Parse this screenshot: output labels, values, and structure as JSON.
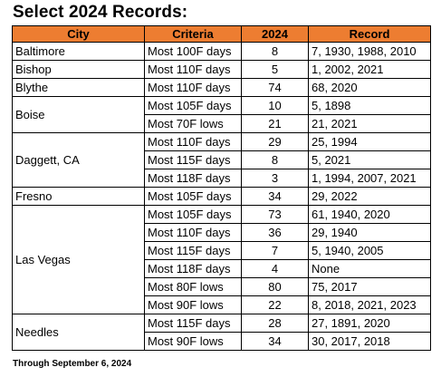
{
  "title": "Select 2024 Records:",
  "columns": [
    "City",
    "Criteria",
    "2024",
    "Record"
  ],
  "groups": [
    {
      "city": "Baltimore",
      "rows": [
        {
          "criteria": "Most 100F days",
          "y2024": "8",
          "record": "7, 1930, 1988, 2010"
        }
      ]
    },
    {
      "city": "Bishop",
      "rows": [
        {
          "criteria": "Most 110F days",
          "y2024": "5",
          "record": "1, 2002, 2021"
        }
      ]
    },
    {
      "city": "Blythe",
      "rows": [
        {
          "criteria": "Most 110F days",
          "y2024": "74",
          "record": "68, 2020"
        }
      ]
    },
    {
      "city": "Boise",
      "rows": [
        {
          "criteria": "Most 105F days",
          "y2024": "10",
          "record": "5, 1898"
        },
        {
          "criteria": "Most 70F lows",
          "y2024": "21",
          "record": "21, 2021"
        }
      ]
    },
    {
      "city": "Daggett, CA",
      "rows": [
        {
          "criteria": "Most 110F days",
          "y2024": "29",
          "record": "25, 1994"
        },
        {
          "criteria": "Most 115F days",
          "y2024": "8",
          "record": "5, 2021"
        },
        {
          "criteria": "Most 118F days",
          "y2024": "3",
          "record": "1, 1994, 2007, 2021"
        }
      ]
    },
    {
      "city": "Fresno",
      "rows": [
        {
          "criteria": "Most 105F days",
          "y2024": "34",
          "record": "29, 2022"
        }
      ]
    },
    {
      "city": "Las Vegas",
      "rows": [
        {
          "criteria": "Most 105F days",
          "y2024": "73",
          "record": "61, 1940, 2020"
        },
        {
          "criteria": "Most 110F days",
          "y2024": "36",
          "record": "29, 1940"
        },
        {
          "criteria": "Most 115F days",
          "y2024": "7",
          "record": "5, 1940, 2005"
        },
        {
          "criteria": "Most 118F days",
          "y2024": "4",
          "record": "None"
        },
        {
          "criteria": "Most 80F lows",
          "y2024": "80",
          "record": "75, 2017"
        },
        {
          "criteria": "Most 90F lows",
          "y2024": "22",
          "record": "8, 2018, 2021, 2023"
        }
      ]
    },
    {
      "city": "Needles",
      "rows": [
        {
          "criteria": "Most 115F days",
          "y2024": "28",
          "record": "27, 1891, 2020"
        },
        {
          "criteria": "Most 90F lows",
          "y2024": "34",
          "record": "30, 2017, 2018"
        }
      ]
    }
  ],
  "footnote": "Through September 6, 2024",
  "colors": {
    "header_bg": "#ED7D31",
    "border": "#000000",
    "background": "#FFFFFF"
  }
}
